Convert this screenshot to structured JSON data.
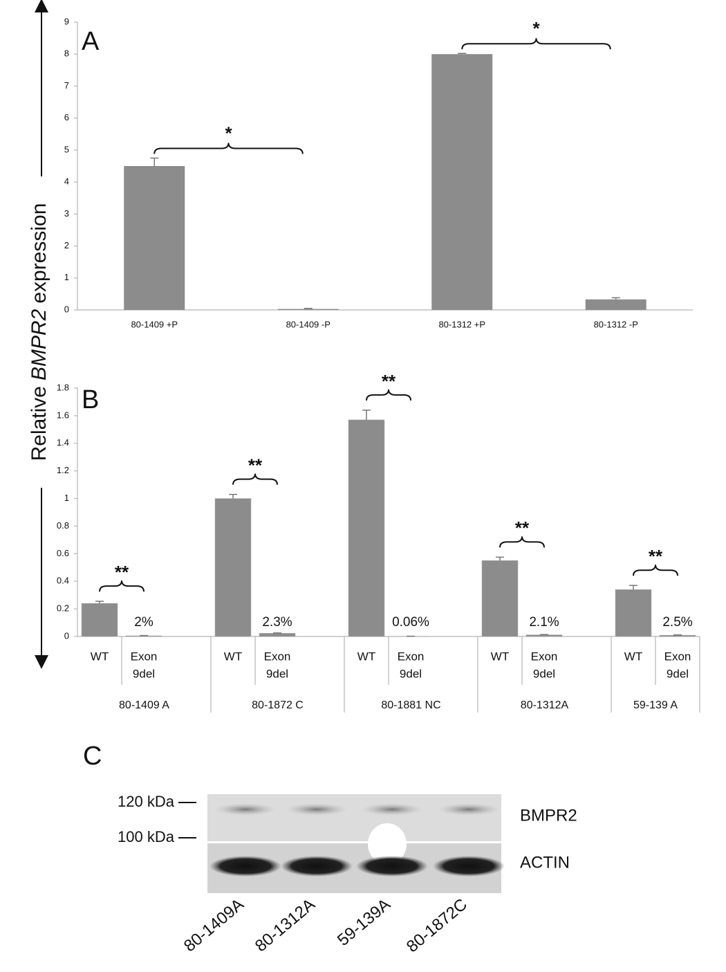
{
  "y_axis_label": [
    "Relative",
    "BMPR2",
    "expression"
  ],
  "chart_data": [
    {
      "type": "bar",
      "panel": "A",
      "categories": [
        "80-1409 +P",
        "80-1409 -P",
        "80-1312 +P",
        "80-1312 -P"
      ],
      "values": [
        4.5,
        0.03,
        8,
        0.33
      ],
      "errors": [
        0.25,
        0.02,
        0.02,
        0.05
      ],
      "color": "#8c8c8c",
      "ylim": [
        0,
        9
      ],
      "yticks": [
        0,
        1,
        2,
        3,
        4,
        5,
        6,
        7,
        8,
        9
      ],
      "significance": [
        "*",
        "*"
      ]
    },
    {
      "type": "grouped_bar",
      "panel": "B",
      "categories": [
        "80-1409 A",
        "80-1872 C",
        "80-1881 NC",
        "80-1312A",
        "59-139 A"
      ],
      "subcategories": [
        [
          "WT"
        ],
        [
          "Exon",
          "9del"
        ]
      ],
      "series": [
        {
          "color": "#8c8c8c",
          "values": [
            0.24,
            1.0,
            1.57,
            0.55,
            0.34
          ],
          "errors": [
            0.015,
            0.03,
            0.07,
            0.025,
            0.03
          ]
        },
        {
          "color": "#8c8c8c",
          "values": [
            0.005,
            0.023,
            0.001,
            0.012,
            0.009
          ],
          "errors": [
            0.002,
            0.003,
            0.001,
            0.002,
            0.002
          ]
        }
      ],
      "annotations": [
        "2%",
        "2.3%",
        "0.06%",
        "2.1%",
        "2.5%"
      ],
      "significance": [
        "**",
        "**",
        "**",
        "**",
        "**"
      ],
      "ylim": [
        0,
        1.8
      ],
      "yticks": [
        0,
        0.2,
        0.4,
        0.6,
        0.8,
        1,
        1.2,
        1.4,
        1.6,
        1.8
      ]
    }
  ],
  "blot": {
    "panel": "C",
    "markers": [
      "120 kDa",
      "100 kDa"
    ],
    "bands": [
      "BMPR2",
      "ACTIN"
    ],
    "lanes": [
      "80-1409A",
      "80-1312A",
      "59-139A",
      "80-1872C"
    ]
  }
}
